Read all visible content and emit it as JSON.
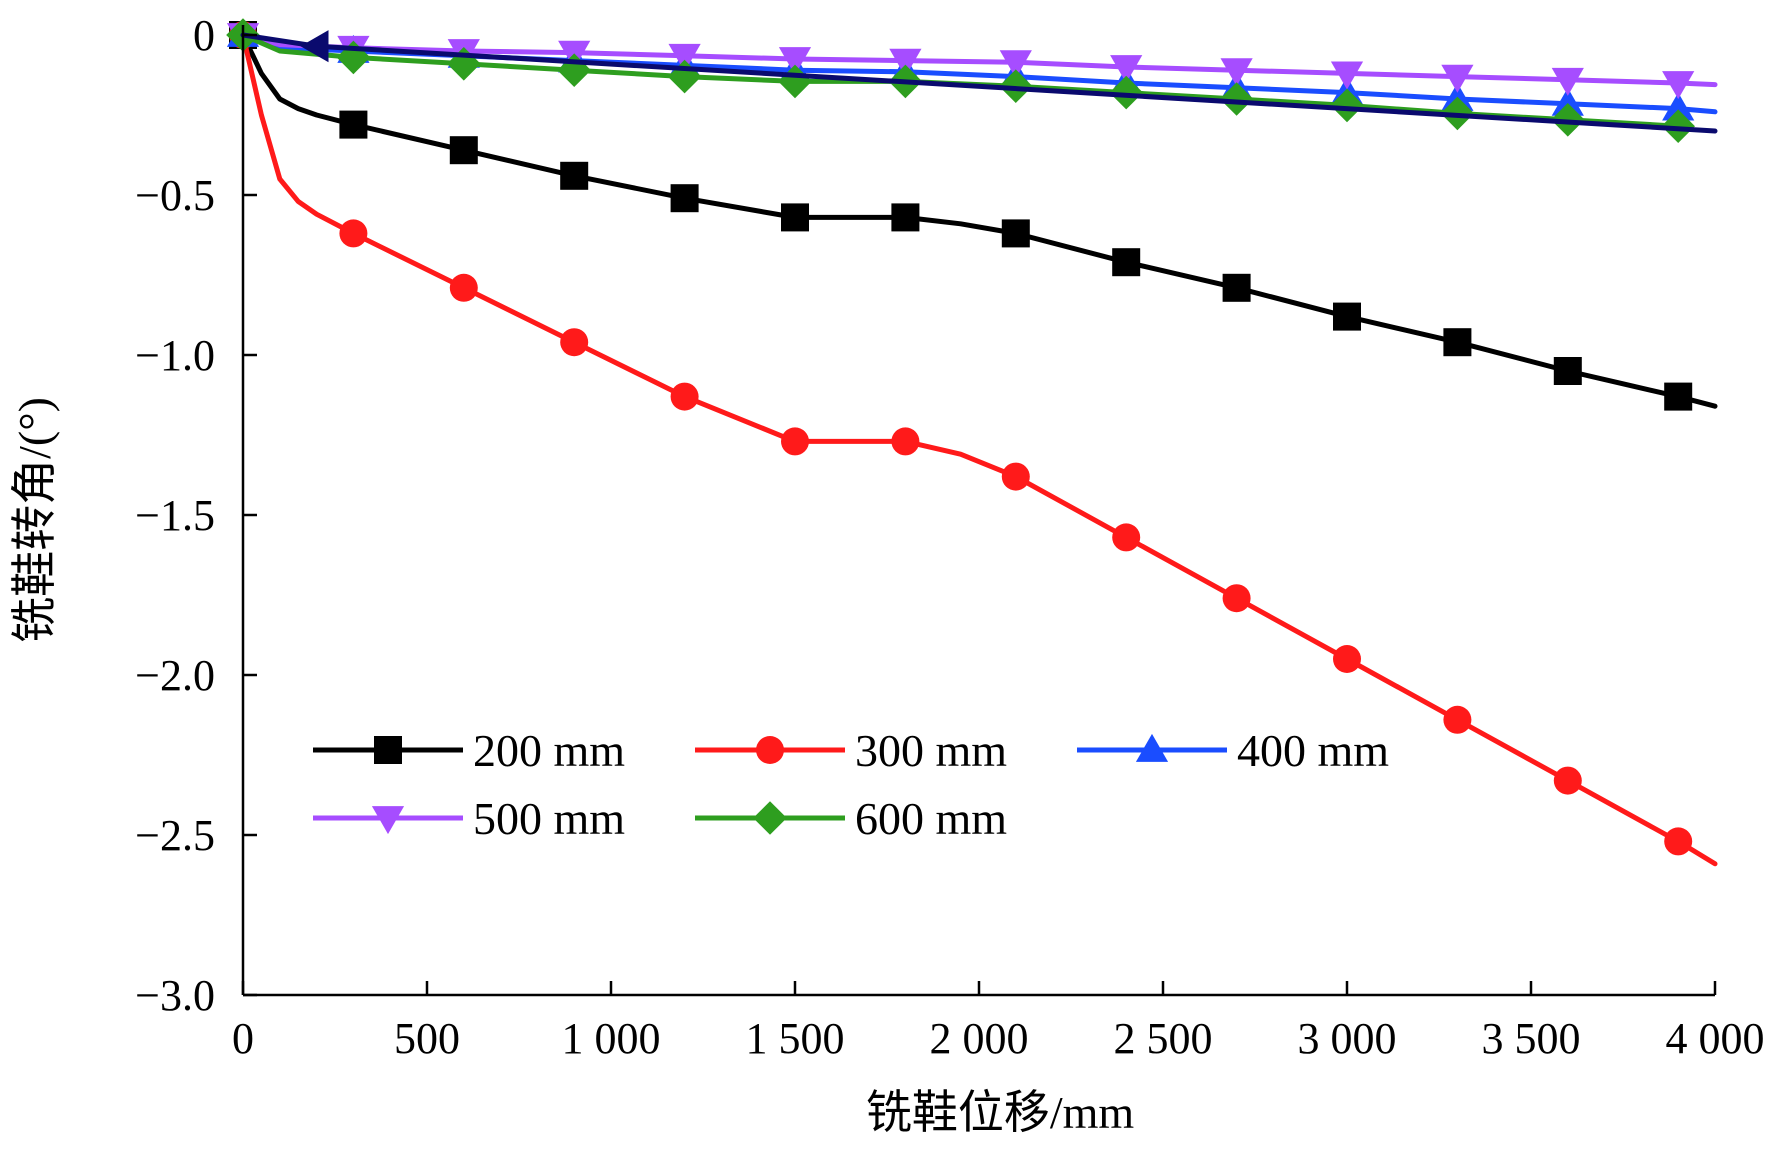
{
  "chart_data": {
    "type": "line",
    "xlabel": "铣鞋位移/mm",
    "ylabel": "铣鞋转角/(°)",
    "xlim": [
      0,
      4000
    ],
    "ylim": [
      -3.0,
      0
    ],
    "x_ticks": [
      0,
      500,
      1000,
      1500,
      2000,
      2500,
      3000,
      3500,
      4000
    ],
    "x_tick_labels": [
      "0",
      "500",
      "1 000",
      "1 500",
      "2 000",
      "2 500",
      "3 000",
      "3 500",
      "4 000"
    ],
    "y_ticks": [
      0,
      -0.5,
      -1.0,
      -1.5,
      -2.0,
      -2.5,
      -3.0
    ],
    "y_tick_labels": [
      "0",
      "−0.5",
      "−1.0",
      "−1.5",
      "−2.0",
      "−2.5",
      "−3.0"
    ],
    "grid": false,
    "legend_position": "bottom-left",
    "series": [
      {
        "name": "200 mm",
        "color": "#000000",
        "marker": "square",
        "x": [
          0,
          50,
          100,
          150,
          200,
          300,
          600,
          900,
          1200,
          1500,
          1650,
          1800,
          1950,
          2100,
          2400,
          2700,
          3000,
          3300,
          3600,
          3900,
          4000
        ],
        "y": [
          0,
          -0.12,
          -0.2,
          -0.23,
          -0.25,
          -0.28,
          -0.36,
          -0.44,
          -0.51,
          -0.57,
          -0.57,
          -0.57,
          -0.59,
          -0.62,
          -0.71,
          -0.79,
          -0.88,
          -0.96,
          -1.05,
          -1.13,
          -1.16
        ],
        "marker_x": [
          0,
          300,
          600,
          900,
          1200,
          1500,
          1800,
          2100,
          2400,
          2700,
          3000,
          3300,
          3600,
          3900
        ]
      },
      {
        "name": "300 mm",
        "color": "#ff1a1a",
        "marker": "circle",
        "x": [
          0,
          50,
          100,
          150,
          200,
          300,
          600,
          900,
          1200,
          1500,
          1650,
          1800,
          1950,
          2100,
          2400,
          2700,
          3000,
          3300,
          3600,
          3900,
          4000
        ],
        "y": [
          0,
          -0.25,
          -0.45,
          -0.52,
          -0.56,
          -0.62,
          -0.79,
          -0.96,
          -1.13,
          -1.27,
          -1.27,
          -1.27,
          -1.31,
          -1.38,
          -1.57,
          -1.76,
          -1.95,
          -2.14,
          -2.33,
          -2.52,
          -2.59
        ],
        "marker_x": [
          0,
          300,
          600,
          900,
          1200,
          1500,
          1800,
          2100,
          2400,
          2700,
          3000,
          3300,
          3600,
          3900
        ]
      },
      {
        "name": "400 mm",
        "color": "#1a4dff",
        "marker": "triangle-up",
        "x": [
          0,
          100,
          300,
          600,
          900,
          1200,
          1500,
          1800,
          2100,
          2400,
          2700,
          3000,
          3300,
          3600,
          3900,
          4000
        ],
        "y": [
          0,
          -0.04,
          -0.05,
          -0.065,
          -0.08,
          -0.095,
          -0.11,
          -0.115,
          -0.13,
          -0.15,
          -0.165,
          -0.18,
          -0.2,
          -0.215,
          -0.23,
          -0.24
        ],
        "marker_x": [
          0,
          300,
          600,
          900,
          1200,
          1500,
          1800,
          2100,
          2400,
          2700,
          3000,
          3300,
          3600,
          3900
        ]
      },
      {
        "name": "500 mm",
        "color": "#a64dff",
        "marker": "triangle-down",
        "x": [
          0,
          100,
          300,
          600,
          900,
          1200,
          1500,
          1800,
          2100,
          2400,
          2700,
          3000,
          3300,
          3600,
          3900,
          4000
        ],
        "y": [
          0,
          -0.03,
          -0.04,
          -0.05,
          -0.055,
          -0.065,
          -0.075,
          -0.08,
          -0.085,
          -0.1,
          -0.11,
          -0.12,
          -0.13,
          -0.14,
          -0.15,
          -0.155
        ],
        "marker_x": [
          0,
          300,
          600,
          900,
          1200,
          1500,
          1800,
          2100,
          2400,
          2700,
          3000,
          3300,
          3600,
          3900
        ]
      },
      {
        "name": "600 mm",
        "color": "#2e9e1f",
        "marker": "diamond",
        "x": [
          0,
          100,
          300,
          600,
          900,
          1200,
          1500,
          1800,
          2100,
          2400,
          2700,
          3000,
          3300,
          3600,
          3900
        ],
        "y": [
          0,
          -0.05,
          -0.07,
          -0.09,
          -0.11,
          -0.13,
          -0.145,
          -0.145,
          -0.16,
          -0.18,
          -0.2,
          -0.22,
          -0.245,
          -0.265,
          -0.285
        ],
        "marker_x": [
          0,
          300,
          600,
          900,
          1200,
          1500,
          1800,
          2100,
          2400,
          2700,
          3000,
          3300,
          3600,
          3900
        ]
      },
      {
        "name": "",
        "color": "#0a0a6e",
        "marker": "triangle-left",
        "x": [
          0,
          200,
          4000
        ],
        "y": [
          0,
          -0.035,
          -0.3
        ],
        "marker_x": [
          200
        ]
      }
    ]
  }
}
